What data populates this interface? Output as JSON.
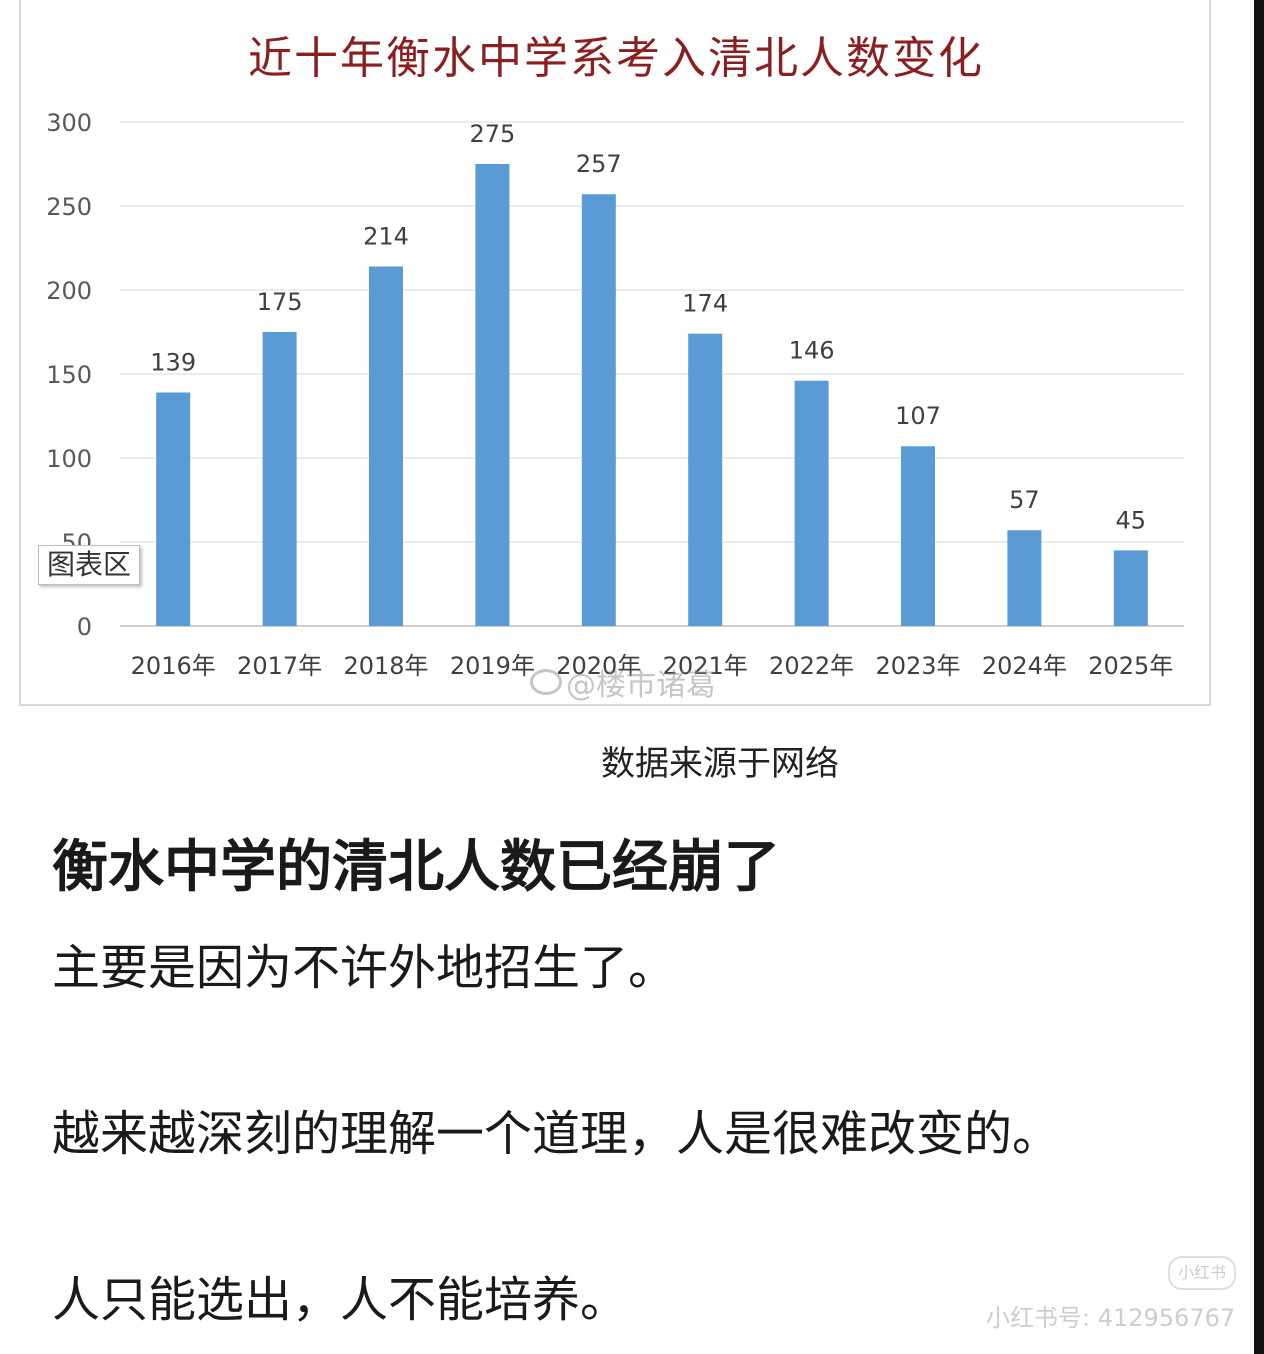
{
  "chart_data": {
    "type": "bar",
    "title": "近十年衡水中学系考入清北人数变化",
    "categories": [
      "2016年",
      "2017年",
      "2018年",
      "2019年",
      "2020年",
      "2021年",
      "2022年",
      "2023年",
      "2024年",
      "2025年"
    ],
    "values": [
      139,
      175,
      214,
      275,
      257,
      174,
      146,
      107,
      57,
      45
    ],
    "ylim": [
      0,
      300
    ],
    "yticks": [
      "0",
      "50",
      "100",
      "150",
      "200",
      "250",
      "300"
    ],
    "bar_color": "#5b9bd5",
    "grid": true,
    "data_labels": true
  },
  "chart_tooltip": "图表区",
  "watermark": "@楼市诸葛",
  "source_note": "数据来源于网络",
  "headline": "衡水中学的清北人数已经崩了",
  "paragraphs": [
    "主要是因为不许外地招生了。",
    "越来越深刻的理解一个道理，人是很难改变的。",
    "人只能选出，人不能培养。"
  ],
  "platform_logo": "小红书",
  "platform_id": "小红书号: 412956767"
}
